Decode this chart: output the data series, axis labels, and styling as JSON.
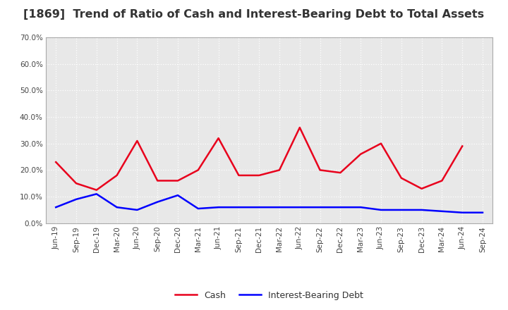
{
  "title": "[1869]  Trend of Ratio of Cash and Interest-Bearing Debt to Total Assets",
  "x_labels": [
    "Jun-19",
    "Sep-19",
    "Dec-19",
    "Mar-20",
    "Jun-20",
    "Sep-20",
    "Dec-20",
    "Mar-21",
    "Jun-21",
    "Sep-21",
    "Dec-21",
    "Mar-22",
    "Jun-22",
    "Sep-22",
    "Dec-22",
    "Mar-23",
    "Jun-23",
    "Sep-23",
    "Dec-23",
    "Mar-24",
    "Jun-24",
    "Sep-24"
  ],
  "cash": [
    23.0,
    15.0,
    12.5,
    18.0,
    31.0,
    16.0,
    16.0,
    20.0,
    32.0,
    18.0,
    18.0,
    20.0,
    36.0,
    20.0,
    19.0,
    26.0,
    30.0,
    17.0,
    13.0,
    16.0,
    29.0,
    null
  ],
  "interest_debt": [
    6.0,
    9.0,
    11.0,
    6.0,
    5.0,
    8.0,
    10.5,
    5.5,
    6.0,
    6.0,
    6.0,
    6.0,
    6.0,
    6.0,
    6.0,
    6.0,
    5.0,
    5.0,
    5.0,
    4.5,
    4.0,
    4.0
  ],
  "cash_color": "#e8001c",
  "debt_color": "#0000ff",
  "ylim": [
    0,
    70
  ],
  "yticks": [
    0,
    10,
    20,
    30,
    40,
    50,
    60,
    70
  ],
  "plot_bg_color": "#e8e8e8",
  "outer_bg_color": "#ffffff",
  "grid_color": "#ffffff",
  "title_fontsize": 11.5,
  "axis_label_fontsize": 7.5,
  "legend_cash": "Cash",
  "legend_debt": "Interest-Bearing Debt"
}
